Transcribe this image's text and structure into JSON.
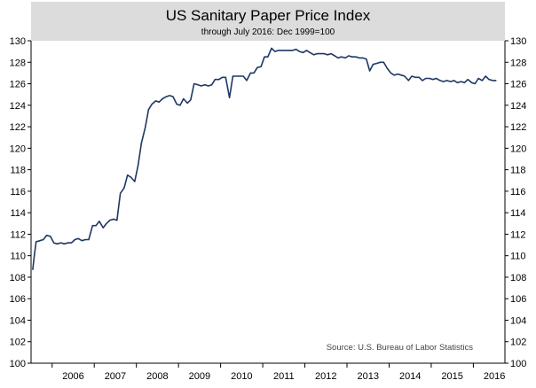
{
  "chart_data": {
    "type": "line",
    "title": "US Sanitary Paper Price Index",
    "subtitle": "through July 2016: Dec 1999=100",
    "source": "Source: U.S. Bureau of Labor Statistics",
    "ylim": [
      100,
      130
    ],
    "xlim": [
      2005.5,
      2016.75
    ],
    "y_ticks": [
      "100",
      "102",
      "104",
      "106",
      "108",
      "110",
      "112",
      "114",
      "116",
      "118",
      "120",
      "122",
      "124",
      "126",
      "128",
      "130"
    ],
    "x_tick_labels": [
      "2006",
      "2007",
      "2008",
      "2009",
      "2010",
      "2011",
      "2012",
      "2013",
      "2014",
      "2015",
      "2016"
    ],
    "grid": false,
    "legend": "none",
    "colors": {
      "header_band": "#dcdcdc",
      "line": "#1f3864",
      "axis": "#000000",
      "text": "#000000",
      "source_text": "#444444"
    },
    "series": [
      {
        "x": [
          2005.54,
          2005.58,
          2005.62,
          2005.71,
          2005.79,
          2005.87,
          2005.96,
          2006.04,
          2006.12,
          2006.21,
          2006.29,
          2006.37,
          2006.46,
          2006.54,
          2006.62,
          2006.71,
          2006.79,
          2006.87,
          2006.96,
          2007.04,
          2007.12,
          2007.21,
          2007.29,
          2007.37,
          2007.46,
          2007.54,
          2007.62,
          2007.71,
          2007.79,
          2007.87,
          2007.96,
          2008.04,
          2008.12,
          2008.21,
          2008.29,
          2008.37,
          2008.46,
          2008.54,
          2008.62,
          2008.71,
          2008.79,
          2008.87,
          2008.96,
          2009.04,
          2009.12,
          2009.21,
          2009.29,
          2009.37,
          2009.46,
          2009.54,
          2009.62,
          2009.71,
          2009.79,
          2009.87,
          2009.96,
          2010.04,
          2010.12,
          2010.21,
          2010.29,
          2010.37,
          2010.46,
          2010.54,
          2010.62,
          2010.71,
          2010.79,
          2010.87,
          2010.96,
          2011.04,
          2011.12,
          2011.21,
          2011.29,
          2011.37,
          2011.46,
          2011.54,
          2011.62,
          2011.71,
          2011.79,
          2011.87,
          2011.96,
          2012.04,
          2012.12,
          2012.21,
          2012.29,
          2012.37,
          2012.46,
          2012.54,
          2012.62,
          2012.71,
          2012.79,
          2012.87,
          2012.96,
          2013.04,
          2013.12,
          2013.21,
          2013.29,
          2013.37,
          2013.46,
          2013.54,
          2013.62,
          2013.71,
          2013.79,
          2013.87,
          2013.96,
          2014.04,
          2014.12,
          2014.21,
          2014.29,
          2014.37,
          2014.46,
          2014.54,
          2014.62,
          2014.71,
          2014.79,
          2014.87,
          2014.96,
          2015.04,
          2015.12,
          2015.21,
          2015.29,
          2015.37,
          2015.46,
          2015.54,
          2015.62,
          2015.71,
          2015.79,
          2015.87,
          2015.96,
          2016.04,
          2016.12,
          2016.21,
          2016.29,
          2016.37,
          2016.46,
          2016.54
        ],
        "values": [
          108.7,
          110.1,
          111.3,
          111.4,
          111.5,
          111.9,
          111.8,
          111.2,
          111.1,
          111.2,
          111.1,
          111.2,
          111.2,
          111.5,
          111.6,
          111.4,
          111.5,
          111.5,
          112.8,
          112.8,
          113.2,
          112.6,
          113.0,
          113.3,
          113.4,
          113.3,
          115.8,
          116.3,
          117.5,
          117.3,
          116.9,
          118.4,
          120.5,
          121.9,
          123.6,
          124.1,
          124.4,
          124.3,
          124.6,
          124.8,
          124.9,
          124.8,
          124.1,
          124.0,
          124.6,
          124.2,
          124.5,
          126.0,
          125.9,
          125.8,
          125.9,
          125.8,
          125.9,
          126.4,
          126.4,
          126.6,
          126.6,
          124.7,
          126.7,
          126.7,
          126.7,
          126.7,
          126.3,
          127.0,
          127.0,
          127.5,
          127.6,
          128.5,
          128.5,
          129.3,
          129.0,
          129.1,
          129.1,
          129.1,
          129.1,
          129.1,
          129.2,
          129.0,
          128.9,
          129.1,
          128.9,
          128.7,
          128.8,
          128.8,
          128.8,
          128.7,
          128.8,
          128.6,
          128.4,
          128.5,
          128.4,
          128.6,
          128.5,
          128.5,
          128.4,
          128.4,
          128.3,
          127.2,
          127.8,
          127.9,
          128.0,
          128.0,
          127.4,
          127.0,
          126.8,
          126.9,
          126.8,
          126.7,
          126.3,
          126.7,
          126.6,
          126.6,
          126.3,
          126.5,
          126.5,
          126.4,
          126.5,
          126.3,
          126.2,
          126.3,
          126.2,
          126.3,
          126.1,
          126.2,
          126.1,
          126.4,
          126.1,
          126.0,
          126.5,
          126.3,
          126.7,
          126.4,
          126.3,
          126.3
        ]
      }
    ]
  }
}
